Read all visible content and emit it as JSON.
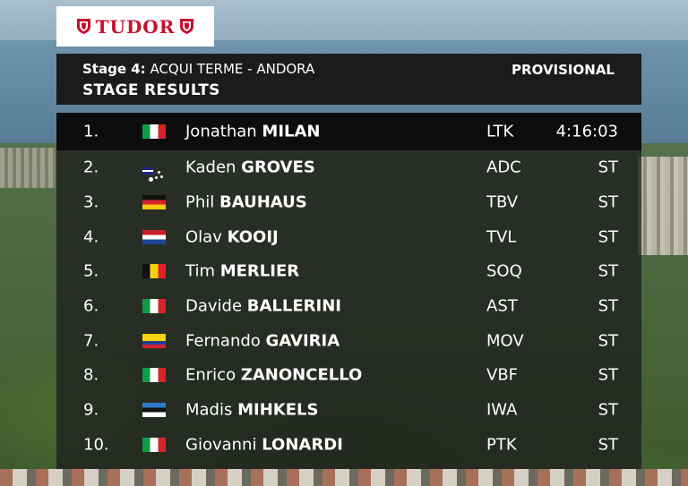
{
  "brand": {
    "logo_text": "TUDOR",
    "color": "#c8102e"
  },
  "header": {
    "stage_label": "Stage 4:",
    "route": "ACQUI TERME - ANDORA",
    "title": "STAGE RESULTS",
    "status": "PROVISIONAL"
  },
  "results": [
    {
      "pos": "1.",
      "flag": "italy-flag-icon",
      "first": "Jonathan",
      "last": "MILAN",
      "team": "LTK",
      "time": "4:16:03"
    },
    {
      "pos": "2.",
      "flag": "australia-flag-icon",
      "first": "Kaden",
      "last": "GROVES",
      "team": "ADC",
      "time": "ST"
    },
    {
      "pos": "3.",
      "flag": "germany-flag-icon",
      "first": "Phil",
      "last": "BAUHAUS",
      "team": "TBV",
      "time": "ST"
    },
    {
      "pos": "4.",
      "flag": "netherlands-flag-icon",
      "first": "Olav",
      "last": "KOOIJ",
      "team": "TVL",
      "time": "ST"
    },
    {
      "pos": "5.",
      "flag": "belgium-flag-icon",
      "first": "Tim",
      "last": "MERLIER",
      "team": "SOQ",
      "time": "ST"
    },
    {
      "pos": "6.",
      "flag": "italy-flag-icon",
      "first": "Davide",
      "last": "BALLERINI",
      "team": "AST",
      "time": "ST"
    },
    {
      "pos": "7.",
      "flag": "colombia-flag-icon",
      "first": "Fernando",
      "last": "GAVIRIA",
      "team": "MOV",
      "time": "ST"
    },
    {
      "pos": "8.",
      "flag": "italy-flag-icon",
      "first": "Enrico",
      "last": "ZANONCELLO",
      "team": "VBF",
      "time": "ST"
    },
    {
      "pos": "9.",
      "flag": "estonia-flag-icon",
      "first": "Madis",
      "last": "MIHKELS",
      "team": "IWA",
      "time": "ST"
    },
    {
      "pos": "10.",
      "flag": "italy-flag-icon",
      "first": "Giovanni",
      "last": "LONARDI",
      "team": "PTK",
      "time": "ST"
    }
  ]
}
